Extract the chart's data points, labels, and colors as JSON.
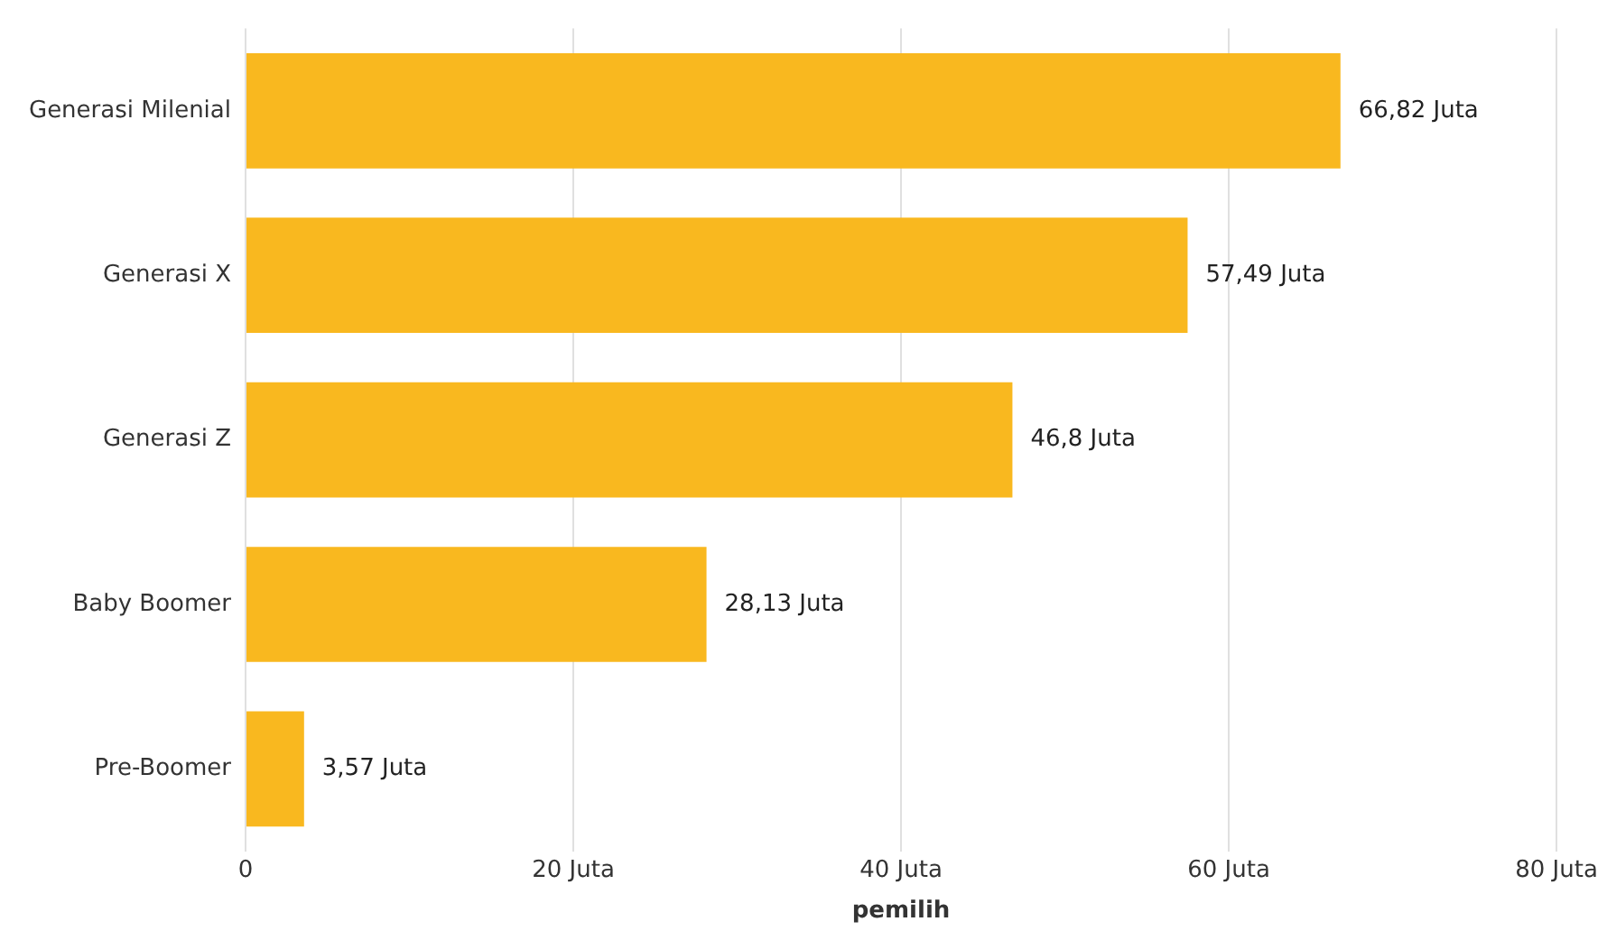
{
  "chart_data": {
    "type": "bar",
    "orientation": "horizontal",
    "xlabel": "pemilih",
    "categories": [
      "Generasi Milenial",
      "Generasi X",
      "Generasi Z",
      "Baby Boomer",
      "Pre-Boomer"
    ],
    "values": [
      66.82,
      57.49,
      46.8,
      28.13,
      3.57
    ],
    "value_labels": [
      "66,82 Juta",
      "57,49 Juta",
      "46,8 Juta",
      "28,13 Juta",
      "3,57 Juta"
    ],
    "color": "#f9b81f",
    "xlim": [
      0,
      80
    ],
    "xticks": [
      0,
      {
        "value": 20,
        "label": "20 Juta"
      },
      {
        "value": 40,
        "label": "40 Juta"
      },
      {
        "value": 60,
        "label": "60 Juta"
      },
      {
        "value": 80,
        "label": "80 Juta"
      }
    ],
    "grid": "x",
    "legend": false
  }
}
